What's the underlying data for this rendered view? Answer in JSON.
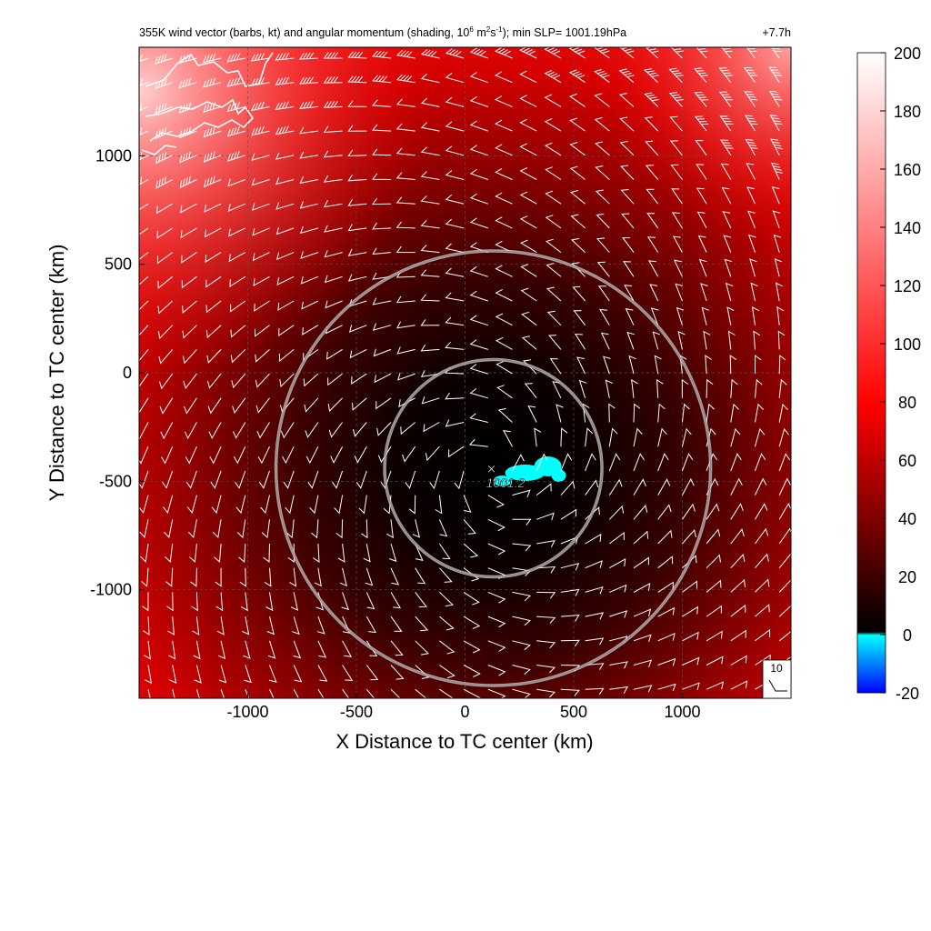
{
  "chart_data": {
    "type": "heatmap",
    "title": {
      "main": "355K wind vector (barbs, kt) and angular momentum (shading, 10",
      "units_exp1": "6",
      "units_mid1": " m",
      "units_exp2": "2",
      "units_mid2": "s",
      "units_exp3": "-1",
      "tail": "); min SLP= 1001.19hPa",
      "time_label": "+7.7h"
    },
    "xlabel": "X Distance to TC center (km)",
    "ylabel": "Y Distance to TC center (km)",
    "xlim": [
      -1500,
      1500
    ],
    "ylim": [
      -1500,
      1500
    ],
    "x_ticks": [
      -1000,
      -500,
      0,
      500,
      1000
    ],
    "y_ticks": [
      -1000,
      -500,
      0,
      500,
      1000
    ],
    "grid": true,
    "colorbar": {
      "ticks": [
        -20,
        0,
        20,
        40,
        60,
        80,
        100,
        120,
        140,
        160,
        180,
        200
      ],
      "range": [
        -20,
        200
      ],
      "colors": {
        "negative_low": "#0000ff",
        "negative_high": "#00ffff",
        "zero": "#000000",
        "mid": "#ff0000",
        "high": "#ffffff"
      }
    },
    "center": {
      "x": 130,
      "y": -440,
      "label": "1001.2",
      "marker": "×"
    },
    "rings_km": [
      500,
      1000
    ],
    "barb_reference": "10",
    "background_field": "angular momentum: near 0 at storm center, increasing outward to ~100 at edges and ~200 in the upper-left corner"
  }
}
